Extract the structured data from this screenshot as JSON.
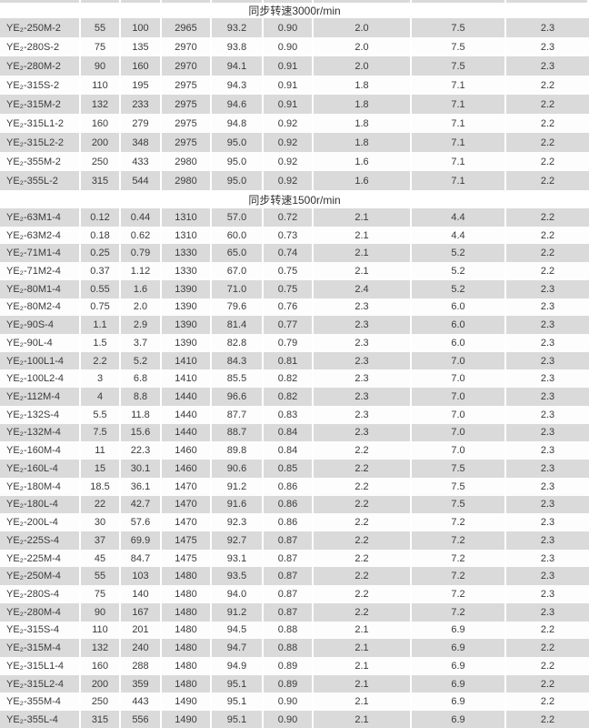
{
  "table": {
    "stripe_color": "#dadada",
    "white_row_color": "#fdfdfd",
    "text_color": "#3b3b3b",
    "sections": [
      {
        "header": "同步转速3000r/min",
        "rows": [
          [
            "YE₂-250M-2",
            "55",
            "100",
            "2965",
            "93.2",
            "0.90",
            "2.0",
            "7.5",
            "2.3"
          ],
          [
            "YE₂-280S-2",
            "75",
            "135",
            "2970",
            "93.8",
            "0.90",
            "2.0",
            "7.5",
            "2.3"
          ],
          [
            "YE₂-280M-2",
            "90",
            "160",
            "2970",
            "94.1",
            "0.91",
            "2.0",
            "7.5",
            "2.3"
          ],
          [
            "YE₂-315S-2",
            "110",
            "195",
            "2975",
            "94.3",
            "0.91",
            "1.8",
            "7.1",
            "2.2"
          ],
          [
            "YE₂-315M-2",
            "132",
            "233",
            "2975",
            "94.6",
            "0.91",
            "1.8",
            "7.1",
            "2.2"
          ],
          [
            "YE₂-315L1-2",
            "160",
            "279",
            "2975",
            "94.8",
            "0.92",
            "1.8",
            "7.1",
            "2.2"
          ],
          [
            "YE₂-315L2-2",
            "200",
            "348",
            "2975",
            "95.0",
            "0.92",
            "1.8",
            "7.1",
            "2.2"
          ],
          [
            "YE₂-355M-2",
            "250",
            "433",
            "2980",
            "95.0",
            "0.92",
            "1.6",
            "7.1",
            "2.2"
          ],
          [
            "YE₂-355L-2",
            "315",
            "544",
            "2980",
            "95.0",
            "0.92",
            "1.6",
            "7.1",
            "2.2"
          ]
        ]
      },
      {
        "header": "同步转速1500r/min",
        "rows": [
          [
            "YE₂-63M1-4",
            "0.12",
            "0.44",
            "1310",
            "57.0",
            "0.72",
            "2.1",
            "4.4",
            "2.2"
          ],
          [
            "YE₂-63M2-4",
            "0.18",
            "0.62",
            "1310",
            "60.0",
            "0.73",
            "2.1",
            "4.4",
            "2.2"
          ],
          [
            "YE₂-71M1-4",
            "0.25",
            "0.79",
            "1330",
            "65.0",
            "0.74",
            "2.1",
            "5.2",
            "2.2"
          ],
          [
            "YE₂-71M2-4",
            "0.37",
            "1.12",
            "1330",
            "67.0",
            "0.75",
            "2.1",
            "5.2",
            "2.2"
          ],
          [
            "YE₂-80M1-4",
            "0.55",
            "1.6",
            "1390",
            "71.0",
            "0.75",
            "2.4",
            "5.2",
            "2.3"
          ],
          [
            "YE₂-80M2-4",
            "0.75",
            "2.0",
            "1390",
            "79.6",
            "0.76",
            "2.3",
            "6.0",
            "2.3"
          ],
          [
            "YE₂-90S-4",
            "1.1",
            "2.9",
            "1390",
            "81.4",
            "0.77",
            "2.3",
            "6.0",
            "2.3"
          ],
          [
            "YE₂-90L-4",
            "1.5",
            "3.7",
            "1390",
            "82.8",
            "0.79",
            "2.3",
            "6.0",
            "2.3"
          ],
          [
            "YE₂-100L1-4",
            "2.2",
            "5.2",
            "1410",
            "84.3",
            "0.81",
            "2.3",
            "7.0",
            "2.3"
          ],
          [
            "YE₂-100L2-4",
            "3",
            "6.8",
            "1410",
            "85.5",
            "0.82",
            "2.3",
            "7.0",
            "2.3"
          ],
          [
            "YE₂-112M-4",
            "4",
            "8.8",
            "1440",
            "96.6",
            "0.82",
            "2.3",
            "7.0",
            "2.3"
          ],
          [
            "YE₂-132S-4",
            "5.5",
            "11.8",
            "1440",
            "87.7",
            "0.83",
            "2.3",
            "7.0",
            "2.3"
          ],
          [
            "YE₂-132M-4",
            "7.5",
            "15.6",
            "1440",
            "88.7",
            "0.84",
            "2.3",
            "7.0",
            "2.3"
          ],
          [
            "YE₂-160M-4",
            "11",
            "22.3",
            "1460",
            "89.8",
            "0.84",
            "2.2",
            "7.0",
            "2.3"
          ],
          [
            "YE₂-160L-4",
            "15",
            "30.1",
            "1460",
            "90.6",
            "0.85",
            "2.2",
            "7.5",
            "2.3"
          ],
          [
            "YE₂-180M-4",
            "18.5",
            "36.1",
            "1470",
            "91.2",
            "0.86",
            "2.2",
            "7.5",
            "2.3"
          ],
          [
            "YE₂-180L-4",
            "22",
            "42.7",
            "1470",
            "91.6",
            "0.86",
            "2.2",
            "7.5",
            "2.3"
          ],
          [
            "YE₂-200L-4",
            "30",
            "57.6",
            "1470",
            "92.3",
            "0.86",
            "2.2",
            "7.2",
            "2.3"
          ],
          [
            "YE₂-225S-4",
            "37",
            "69.9",
            "1475",
            "92.7",
            "0.87",
            "2.2",
            "7.2",
            "2.3"
          ],
          [
            "YE₂-225M-4",
            "45",
            "84.7",
            "1475",
            "93.1",
            "0.87",
            "2.2",
            "7.2",
            "2.3"
          ],
          [
            "YE₂-250M-4",
            "55",
            "103",
            "1480",
            "93.5",
            "0.87",
            "2.2",
            "7.2",
            "2.3"
          ],
          [
            "YE₂-280S-4",
            "75",
            "140",
            "1480",
            "94.0",
            "0.87",
            "2.2",
            "7.2",
            "2.3"
          ],
          [
            "YE₂-280M-4",
            "90",
            "167",
            "1480",
            "91.2",
            "0.87",
            "2.2",
            "7.2",
            "2.3"
          ],
          [
            "YE₂-315S-4",
            "110",
            "201",
            "1480",
            "94.5",
            "0.88",
            "2.1",
            "6.9",
            "2.2"
          ],
          [
            "YE₂-315M-4",
            "132",
            "240",
            "1480",
            "94.7",
            "0.88",
            "2.1",
            "6.9",
            "2.2"
          ],
          [
            "YE₂-315L1-4",
            "160",
            "288",
            "1480",
            "94.9",
            "0.89",
            "2.1",
            "6.9",
            "2.2"
          ],
          [
            "YE₂-315L2-4",
            "200",
            "359",
            "1480",
            "95.1",
            "0.89",
            "2.1",
            "6.9",
            "2.2"
          ],
          [
            "YE₂-355M-4",
            "250",
            "443",
            "1490",
            "95.1",
            "0.90",
            "2.1",
            "6.9",
            "2.2"
          ],
          [
            "YE₂-355L-4",
            "315",
            "556",
            "1490",
            "95.1",
            "0.90",
            "2.1",
            "6.9",
            "2.2"
          ]
        ]
      }
    ]
  }
}
